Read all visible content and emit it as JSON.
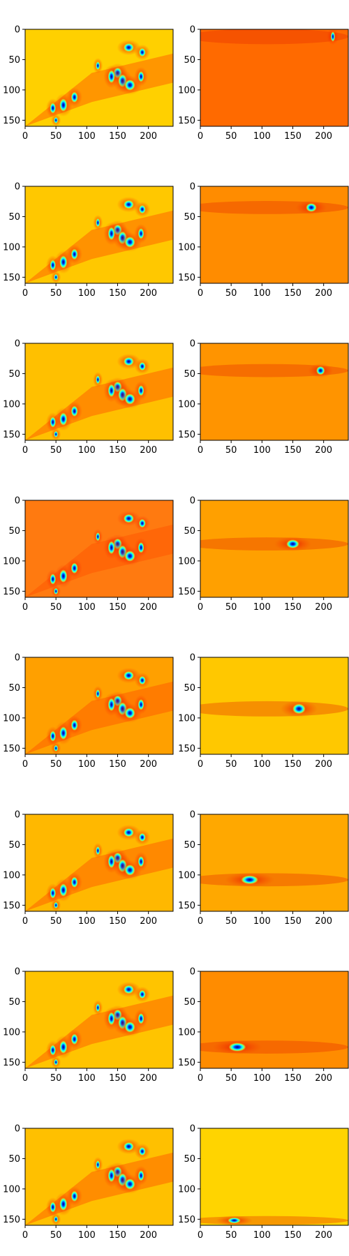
{
  "chart_data": {
    "type": "heatmap",
    "layout": "8 rows x 2 columns of image panels",
    "colormap": "jet",
    "grid": false,
    "legend": "none",
    "xlim": [
      0,
      240
    ],
    "ylim": [
      160,
      0
    ],
    "x_ticks": [
      "0",
      "50",
      "100",
      "150",
      "200"
    ],
    "y_ticks": [
      "0",
      "50",
      "100",
      "150"
    ],
    "x_tick_values": [
      0,
      50,
      100,
      150,
      200
    ],
    "y_tick_values": [
      0,
      50,
      100,
      150
    ],
    "columns": [
      "left",
      "right"
    ],
    "rows": [
      {
        "left_background": "#ffd000",
        "right_background": "#ff6a00"
      },
      {
        "left_background": "#ffc800",
        "right_background": "#ff8c00"
      },
      {
        "left_background": "#ffc000",
        "right_background": "#ff9400"
      },
      {
        "left_background": "#ff7a10",
        "right_background": "#ffa000"
      },
      {
        "left_background": "#ffa000",
        "right_background": "#ffc800"
      },
      {
        "left_background": "#ffb800",
        "right_background": "#ffa800"
      },
      {
        "left_background": "#ffc400",
        "right_background": "#ff8c00"
      },
      {
        "left_background": "#ffc000",
        "right_background": "#ffd400"
      }
    ],
    "colors": {
      "jet_low": "#00007f",
      "jet_mid_low": "#00ffff",
      "jet_mid": "#7fff7f",
      "jet_mid_high": "#ffff00",
      "jet_high": "#ff0000"
    }
  }
}
